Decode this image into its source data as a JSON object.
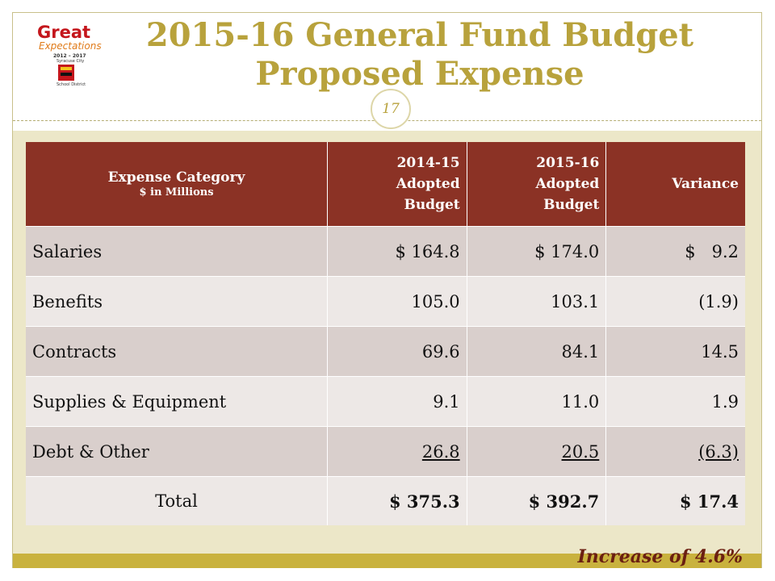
{
  "title": {
    "line1": "2015-16 General Fund Budget",
    "line2": "Proposed Expense"
  },
  "page_number": "17",
  "logo": {
    "brand": "Great",
    "tagline": "Expectations",
    "years": "2012 – 2017",
    "district_line1": "Syracuse City",
    "district_line2": "School District"
  },
  "table": {
    "headers": {
      "category": "Expense Category",
      "category_sub": "$ in Millions",
      "col1_line1": "2014-15",
      "col1_line2": "Adopted",
      "col1_line3": "Budget",
      "col2_line1": "2015-16",
      "col2_line2": "Adopted",
      "col2_line3": "Budget",
      "variance": "Variance"
    },
    "rows": [
      {
        "category": "Salaries",
        "budget_2014_15": "$ 164.8",
        "budget_2015_16": "$ 174.0",
        "variance": "$   9.2"
      },
      {
        "category": "Benefits",
        "budget_2014_15": "105.0",
        "budget_2015_16": "103.1",
        "variance": "(1.9)"
      },
      {
        "category": "Contracts",
        "budget_2014_15": "69.6",
        "budget_2015_16": "84.1",
        "variance": "14.5"
      },
      {
        "category": "Supplies & Equipment",
        "budget_2014_15": "9.1",
        "budget_2015_16": "11.0",
        "variance": "1.9"
      },
      {
        "category": "Debt & Other",
        "budget_2014_15": "26.8",
        "budget_2015_16": "20.5",
        "variance": "(6.3)"
      }
    ],
    "total": {
      "label": "Total",
      "budget_2014_15": "$ 375.3",
      "budget_2015_16": "$ 392.7",
      "variance": "$ 17.4"
    }
  },
  "footer_note": "Increase of 4.6%",
  "colors": {
    "title": "#b8a23c",
    "header_bg": "#8b3225",
    "row_odd": "#d9cfcc",
    "row_even": "#ede8e6",
    "band": "#ece7c8",
    "bottom_band": "#c9b23e",
    "footer_text": "#6b1f12"
  }
}
